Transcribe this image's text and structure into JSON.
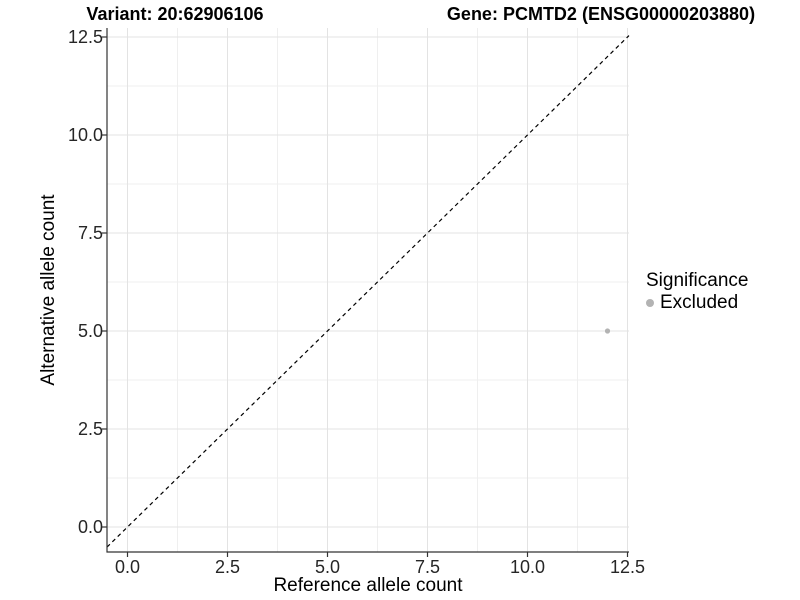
{
  "chart_data": {
    "type": "scatter",
    "title": "Variant: 20:62906106   Gene: PCMTD2 (ENSG00000203880)",
    "title_left": "Variant: 20:62906106",
    "title_right": "Gene: PCMTD2 (ENSG00000203880)",
    "xlabel": "Reference allele count",
    "ylabel": "Alternative allele count",
    "xlim": [
      -0.5,
      12.55
    ],
    "ylim": [
      -0.65,
      12.75
    ],
    "xticks": [
      0.0,
      2.5,
      5.0,
      7.5,
      10.0,
      12.5
    ],
    "yticks": [
      0.0,
      2.5,
      5.0,
      7.5,
      10.0,
      12.5
    ],
    "xtick_labels": [
      "0.0",
      "2.5",
      "5.0",
      "7.5",
      "10.0",
      "12.5"
    ],
    "ytick_labels": [
      "0.0",
      "2.5",
      "5.0",
      "7.5",
      "10.0",
      "12.5"
    ],
    "minor_ticks": [
      1.25,
      3.75,
      6.25,
      8.75,
      11.25
    ],
    "grid": true,
    "points": [
      {
        "x": 12,
        "y": 5,
        "series": "Excluded"
      }
    ],
    "reference_line": {
      "slope": 1,
      "intercept": 0,
      "style": "dashed"
    },
    "legend": {
      "title": "Significance",
      "position": "right",
      "items": [
        {
          "label": "Excluded",
          "color": "#b3b3b3"
        }
      ]
    }
  },
  "colors": {
    "background": "#ffffff",
    "point": "#b3b3b3",
    "grid_major": "#e3e3e3",
    "grid_minor": "#efefef",
    "axis_line": "#333333",
    "tick_mark": "#333333",
    "tick_label": "#262626",
    "reference_line": "#000000"
  }
}
